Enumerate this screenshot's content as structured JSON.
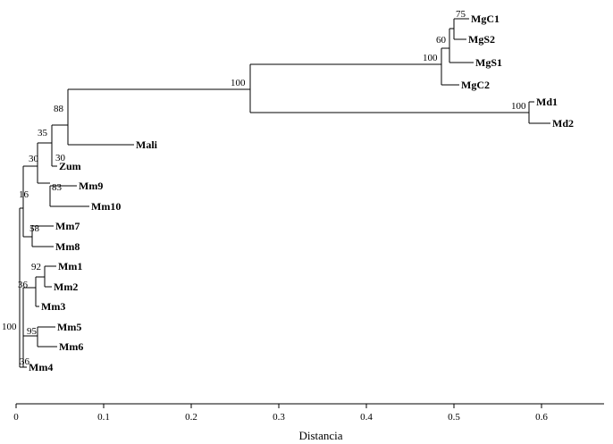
{
  "axis": {
    "label": "Distancia",
    "min": 0,
    "max": 0.66,
    "ticks": [
      "0",
      "0.1",
      "0.2",
      "0.3",
      "0.4",
      "0.5",
      "0.6"
    ]
  },
  "tree": {
    "leaves": [
      "MgC1",
      "MgS2",
      "MgS1",
      "MgC2",
      "Md1",
      "Md2",
      "Mali",
      "Zum",
      "Mm9",
      "Mm10",
      "Mm7",
      "Mm8",
      "Mm1",
      "Mm2",
      "Mm3",
      "Mm5",
      "Mm6",
      "Mm4"
    ],
    "bootstrap": [
      "75",
      "60",
      "100",
      "100",
      "100",
      "88",
      "35",
      "30",
      "30",
      "83",
      "16",
      "58",
      "92",
      "36",
      "95",
      "36",
      "100"
    ]
  }
}
